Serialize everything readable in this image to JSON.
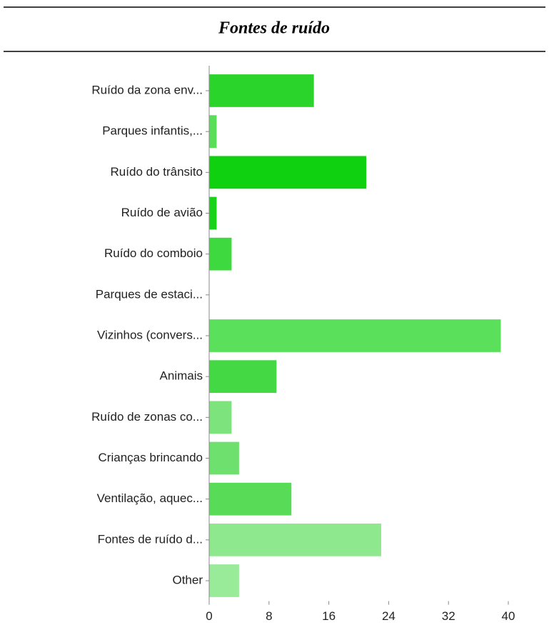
{
  "chart_data": {
    "type": "bar",
    "orientation": "horizontal",
    "title": "Fontes de ruído",
    "categories": [
      "Ruído da zona env...",
      "Parques infantis,...",
      "Ruído do trânsito",
      "Ruído de avião",
      "Ruído do comboio",
      "Parques de estaci...",
      "Vizinhos (convers...",
      "Animais",
      "Ruído de zonas co...",
      "Crianças brincando",
      "Ventilação, aquec...",
      "Fontes de ruído d...",
      "Other"
    ],
    "values": [
      14,
      1,
      21,
      1,
      3,
      0,
      39,
      9,
      3,
      4,
      11,
      23,
      4
    ],
    "colors": [
      "#2ad42a",
      "#5ade5a",
      "#0fd10f",
      "#1bd21b",
      "#3ed93e",
      "#3ed93e",
      "#5be05b",
      "#44d944",
      "#7de47d",
      "#6ee06e",
      "#58dc58",
      "#8ee88e",
      "#99ea99"
    ],
    "xlim": [
      0,
      40
    ],
    "xticks": [
      0,
      8,
      16,
      24,
      32,
      40
    ]
  }
}
